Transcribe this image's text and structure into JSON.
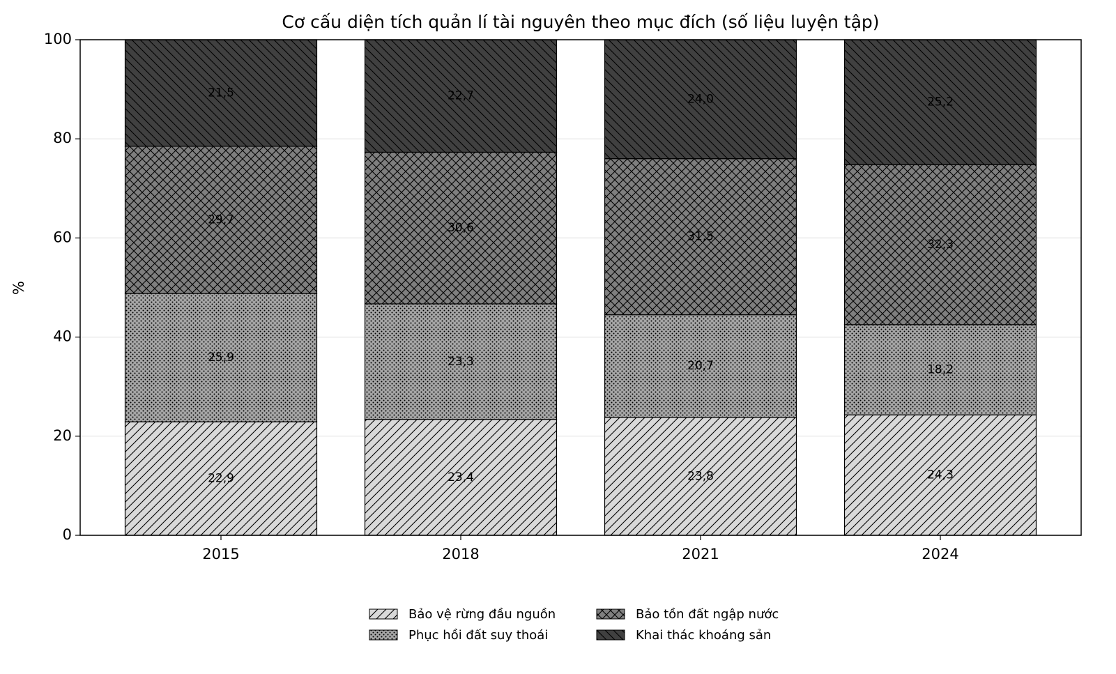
{
  "chart_data": {
    "type": "stacked_bar",
    "title": "Cơ cấu diện tích quản lí tài nguyên theo mục đích (số liệu luyện tập)",
    "y_label": "%",
    "categories": [
      "2015",
      "2018",
      "2021",
      "2024"
    ],
    "series": [
      {
        "name": "Bảo vệ rừng đầu nguồn",
        "color": "#d9d9d9",
        "hatch": "diagonal",
        "values": [
          22.9,
          23.4,
          23.8,
          24.3
        ],
        "value_labels": [
          "22,9",
          "23,4",
          "23,8",
          "24,3"
        ]
      },
      {
        "name": "Phục hồi đất suy thoái",
        "color": "#a6a6a6",
        "hatch": "dots",
        "values": [
          25.9,
          23.3,
          20.7,
          18.2
        ],
        "value_labels": [
          "25,9",
          "23,3",
          "20,7",
          "18,2"
        ]
      },
      {
        "name": "Bảo tồn đất ngập nước",
        "color": "#7f7f7f",
        "hatch": "cross",
        "values": [
          29.7,
          30.6,
          31.5,
          32.3
        ],
        "value_labels": [
          "29,7",
          "30,6",
          "31,5",
          "32,3"
        ]
      },
      {
        "name": "Khai thác khoáng sản",
        "color": "#404040",
        "hatch": "backdiagonal",
        "values": [
          21.5,
          22.7,
          24.0,
          25.2
        ],
        "value_labels": [
          "21,5",
          "22,7",
          "24,0",
          "25,2"
        ]
      }
    ],
    "ylim": [
      0,
      100
    ],
    "yticks": [
      0,
      20,
      40,
      60,
      80,
      100
    ],
    "grid": true,
    "legend": "bottom"
  }
}
